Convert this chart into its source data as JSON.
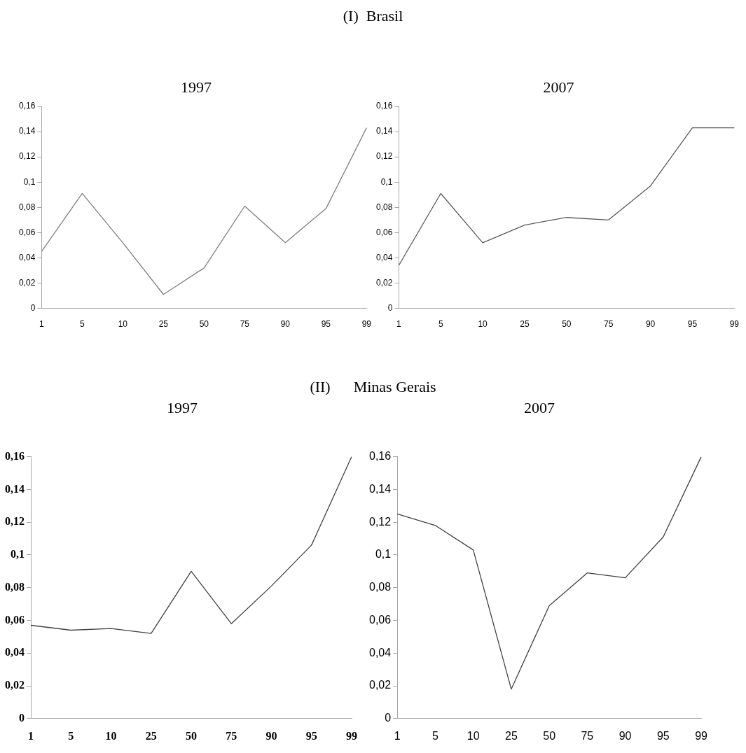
{
  "chart_data": [
    {
      "type": "line",
      "title": "1997",
      "annotations": [
        "(I)  Brasil"
      ],
      "categories": [
        "1",
        "5",
        "10",
        "25",
        "50",
        "75",
        "90",
        "95",
        "99"
      ],
      "series": [
        {
          "color": "#7f7f7f",
          "values": [
            0.045,
            0.091,
            0.052,
            0.011,
            0.032,
            0.081,
            0.052,
            0.079,
            0.143
          ]
        }
      ],
      "ylim": [
        0,
        0.16
      ],
      "yticks": [
        {
          "value": 0,
          "label": "0"
        },
        {
          "value": 0.02,
          "label": "0,02"
        },
        {
          "value": 0.04,
          "label": "0,04"
        },
        {
          "value": 0.06,
          "label": "0,06"
        },
        {
          "value": 0.08,
          "label": "0,08"
        },
        {
          "value": 0.1,
          "label": "0,1"
        },
        {
          "value": 0.12,
          "label": "0,12"
        },
        {
          "value": 0.14,
          "label": "0,14"
        },
        {
          "value": 0.16,
          "label": "0,16"
        }
      ],
      "grid": false,
      "legend": false,
      "marker": "none",
      "line_style": "solid"
    },
    {
      "type": "line",
      "title": "2007",
      "categories": [
        "1",
        "5",
        "10",
        "25",
        "50",
        "75",
        "90",
        "95",
        "99"
      ],
      "series": [
        {
          "color": "#595959",
          "values": [
            0.034,
            0.091,
            0.052,
            0.066,
            0.072,
            0.07,
            0.097,
            0.143,
            0.143
          ]
        }
      ],
      "ylim": [
        0,
        0.16
      ],
      "yticks": [
        {
          "value": 0,
          "label": "0"
        },
        {
          "value": 0.02,
          "label": "0,02"
        },
        {
          "value": 0.04,
          "label": "0,04"
        },
        {
          "value": 0.06,
          "label": "0,06"
        },
        {
          "value": 0.08,
          "label": "0,08"
        },
        {
          "value": 0.1,
          "label": "0,1"
        },
        {
          "value": 0.12,
          "label": "0,12"
        },
        {
          "value": 0.14,
          "label": "0,14"
        },
        {
          "value": 0.16,
          "label": "0,16"
        }
      ],
      "grid": false,
      "legend": false,
      "marker": "none",
      "line_style": "solid"
    },
    {
      "type": "line",
      "title": "1997",
      "annotations": [
        "(II)      Minas Gerais"
      ],
      "categories": [
        "1",
        "5",
        "10",
        "25",
        "50",
        "75",
        "90",
        "95",
        "99"
      ],
      "series": [
        {
          "color": "#404040",
          "values": [
            0.057,
            0.054,
            0.055,
            0.052,
            0.09,
            0.058,
            0.081,
            0.106,
            0.16
          ]
        }
      ],
      "ylim": [
        0,
        0.16
      ],
      "yticks": [
        {
          "value": 0,
          "label": "0"
        },
        {
          "value": 0.02,
          "label": "0,02"
        },
        {
          "value": 0.04,
          "label": "0,04"
        },
        {
          "value": 0.06,
          "label": "0,06"
        },
        {
          "value": 0.08,
          "label": "0,08"
        },
        {
          "value": 0.1,
          "label": "0,1"
        },
        {
          "value": 0.12,
          "label": "0,12"
        },
        {
          "value": 0.14,
          "label": "0,14"
        },
        {
          "value": 0.16,
          "label": "0,16"
        }
      ],
      "grid": false,
      "legend": false,
      "marker": "none",
      "line_style": "solid"
    },
    {
      "type": "line",
      "title": "2007",
      "categories": [
        "1",
        "5",
        "10",
        "25",
        "50",
        "75",
        "90",
        "95",
        "99"
      ],
      "series": [
        {
          "color": "#404040",
          "values": [
            0.125,
            0.118,
            0.103,
            0.018,
            0.069,
            0.089,
            0.086,
            0.111,
            0.16
          ]
        }
      ],
      "ylim": [
        0,
        0.16
      ],
      "yticks": [
        {
          "value": 0,
          "label": "0"
        },
        {
          "value": 0.02,
          "label": "0,02"
        },
        {
          "value": 0.04,
          "label": "0,04"
        },
        {
          "value": 0.06,
          "label": "0,06"
        },
        {
          "value": 0.08,
          "label": "0,08"
        },
        {
          "value": 0.1,
          "label": "0,1"
        },
        {
          "value": 0.12,
          "label": "0,12"
        },
        {
          "value": 0.14,
          "label": "0,14"
        },
        {
          "value": 0.16,
          "label": "0,16"
        }
      ],
      "grid": false,
      "legend": false,
      "marker": "none",
      "line_style": "solid"
    }
  ]
}
